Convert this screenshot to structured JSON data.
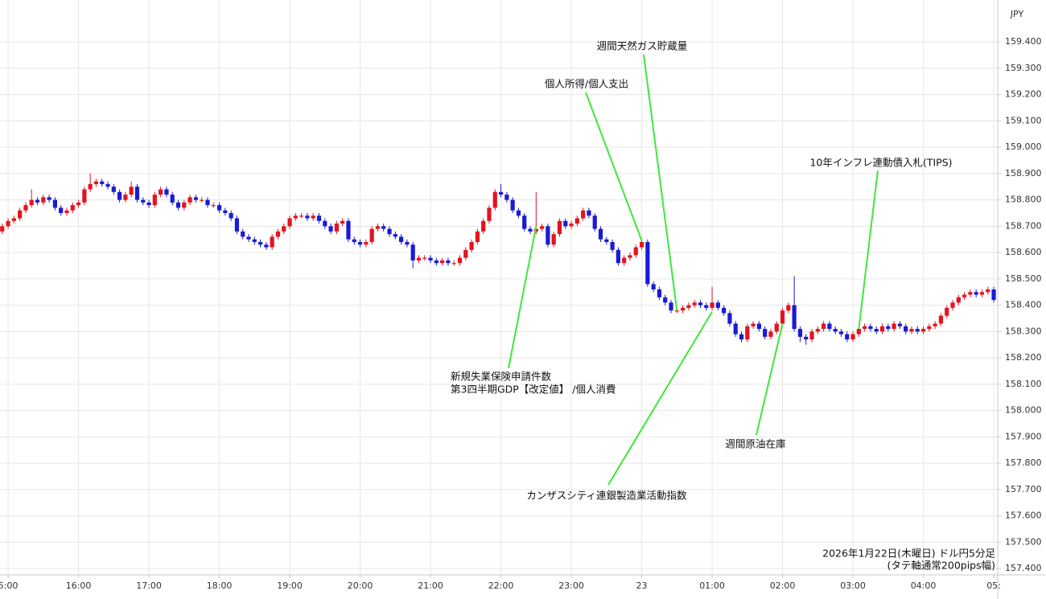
{
  "chart_data": {
    "type": "candlestick",
    "y_axis_label": "JPY",
    "up_color": "#e3141e",
    "down_color": "#1a1ad6",
    "grid": true,
    "xlim": [
      893.1,
      1743.4
    ],
    "ylim": [
      157.376,
      159.559
    ],
    "xticks": [
      {
        "value": 900,
        "label": "5:00"
      },
      {
        "value": 960,
        "label": "16:00"
      },
      {
        "value": 1020,
        "label": "17:00"
      },
      {
        "value": 1080,
        "label": "18:00"
      },
      {
        "value": 1140,
        "label": "19:00"
      },
      {
        "value": 1200,
        "label": "20:00"
      },
      {
        "value": 1260,
        "label": "21:00"
      },
      {
        "value": 1320,
        "label": "22:00"
      },
      {
        "value": 1380,
        "label": "23:00"
      },
      {
        "value": 1440,
        "label": "23"
      },
      {
        "value": 1500,
        "label": "01:00"
      },
      {
        "value": 1560,
        "label": "02:00"
      },
      {
        "value": 1620,
        "label": "03:00"
      },
      {
        "value": 1680,
        "label": "04:00"
      },
      {
        "value": 1740,
        "label": "05:"
      }
    ],
    "yticks": [
      {
        "value": 159.4,
        "label": "159.400"
      },
      {
        "value": 159.3,
        "label": "159.300"
      },
      {
        "value": 159.2,
        "label": "159.200"
      },
      {
        "value": 159.1,
        "label": "159.100"
      },
      {
        "value": 159.0,
        "label": "159.000"
      },
      {
        "value": 158.9,
        "label": "158.900"
      },
      {
        "value": 158.8,
        "label": "158.800"
      },
      {
        "value": 158.7,
        "label": "158.700"
      },
      {
        "value": 158.6,
        "label": "158.600"
      },
      {
        "value": 158.5,
        "label": "158.500"
      },
      {
        "value": 158.4,
        "label": "158.400"
      },
      {
        "value": 158.3,
        "label": "158.300"
      },
      {
        "value": 158.2,
        "label": "158.200"
      },
      {
        "value": 158.1,
        "label": "158.100"
      },
      {
        "value": 158.0,
        "label": "158.000"
      },
      {
        "value": 157.9,
        "label": "157.900"
      },
      {
        "value": 157.8,
        "label": "157.800"
      },
      {
        "value": 157.7,
        "label": "157.700"
      },
      {
        "value": 157.6,
        "label": "157.600"
      },
      {
        "value": 157.5,
        "label": "157.500"
      },
      {
        "value": 157.4,
        "label": "157.400"
      }
    ],
    "x": [
      895,
      900,
      905,
      910,
      915,
      920,
      925,
      930,
      935,
      940,
      945,
      950,
      955,
      960,
      965,
      970,
      975,
      980,
      985,
      990,
      995,
      1000,
      1005,
      1010,
      1015,
      1020,
      1025,
      1030,
      1035,
      1040,
      1045,
      1050,
      1055,
      1060,
      1065,
      1070,
      1075,
      1080,
      1085,
      1090,
      1095,
      1100,
      1105,
      1110,
      1115,
      1120,
      1125,
      1130,
      1135,
      1140,
      1145,
      1150,
      1155,
      1160,
      1165,
      1170,
      1175,
      1180,
      1185,
      1190,
      1195,
      1200,
      1205,
      1210,
      1215,
      1220,
      1225,
      1230,
      1235,
      1240,
      1245,
      1250,
      1255,
      1260,
      1265,
      1270,
      1275,
      1280,
      1285,
      1290,
      1295,
      1300,
      1305,
      1310,
      1315,
      1320,
      1325,
      1330,
      1335,
      1340,
      1345,
      1350,
      1355,
      1360,
      1365,
      1370,
      1375,
      1380,
      1385,
      1390,
      1395,
      1400,
      1405,
      1410,
      1415,
      1420,
      1425,
      1430,
      1435,
      1440,
      1445,
      1450,
      1455,
      1460,
      1465,
      1470,
      1475,
      1480,
      1485,
      1490,
      1495,
      1500,
      1505,
      1510,
      1515,
      1520,
      1525,
      1530,
      1535,
      1540,
      1545,
      1550,
      1555,
      1560,
      1565,
      1570,
      1575,
      1580,
      1585,
      1590,
      1595,
      1600,
      1605,
      1610,
      1615,
      1620,
      1625,
      1630,
      1635,
      1640,
      1645,
      1650,
      1655,
      1660,
      1665,
      1670,
      1675,
      1680,
      1685,
      1690,
      1695,
      1700,
      1705,
      1710,
      1715,
      1720,
      1725,
      1730,
      1735,
      1740
    ],
    "open": [
      158.68,
      158.7,
      158.72,
      158.73,
      158.76,
      158.78,
      158.8,
      158.79,
      158.81,
      158.8,
      158.77,
      158.75,
      158.76,
      158.78,
      158.79,
      158.84,
      158.86,
      158.87,
      158.86,
      158.85,
      158.83,
      158.8,
      158.82,
      158.85,
      158.8,
      158.79,
      158.78,
      158.82,
      158.84,
      158.82,
      158.79,
      158.77,
      158.79,
      158.81,
      158.8,
      158.8,
      158.78,
      158.78,
      158.76,
      158.75,
      158.73,
      158.68,
      158.66,
      158.65,
      158.64,
      158.63,
      158.62,
      158.66,
      158.68,
      158.7,
      158.73,
      158.74,
      158.74,
      158.73,
      158.74,
      158.72,
      158.7,
      158.68,
      158.71,
      158.72,
      158.65,
      158.64,
      158.63,
      158.64,
      158.69,
      158.7,
      158.69,
      158.67,
      158.66,
      158.64,
      158.63,
      158.57,
      158.58,
      158.58,
      158.57,
      158.56,
      158.57,
      158.56,
      158.56,
      158.58,
      158.61,
      158.64,
      158.68,
      158.72,
      158.77,
      158.83,
      158.82,
      158.8,
      158.76,
      158.74,
      158.69,
      158.68,
      158.69,
      158.7,
      158.63,
      158.67,
      158.72,
      158.7,
      158.71,
      158.73,
      158.76,
      158.74,
      158.69,
      158.65,
      158.64,
      158.61,
      158.56,
      158.58,
      158.59,
      158.62,
      158.64,
      158.48,
      158.46,
      158.43,
      158.41,
      158.38,
      158.38,
      158.39,
      158.4,
      158.41,
      158.4,
      158.39,
      158.41,
      158.39,
      158.37,
      158.33,
      158.29,
      158.27,
      158.32,
      158.33,
      158.31,
      158.28,
      158.3,
      158.33,
      158.38,
      158.4,
      158.31,
      158.28,
      158.27,
      158.3,
      158.31,
      158.33,
      158.31,
      158.3,
      158.29,
      158.27,
      158.29,
      158.31,
      158.32,
      158.31,
      158.3,
      158.32,
      158.31,
      158.33,
      158.32,
      158.3,
      158.31,
      158.3,
      158.31,
      158.32,
      158.33,
      158.36,
      158.39,
      158.41,
      158.43,
      158.44,
      158.45,
      158.44,
      158.45,
      158.46
    ],
    "high": [
      158.71,
      158.73,
      158.74,
      158.77,
      158.79,
      158.84,
      158.81,
      158.82,
      158.82,
      158.81,
      158.78,
      158.77,
      158.79,
      158.8,
      158.85,
      158.9,
      158.88,
      158.88,
      158.87,
      158.86,
      158.84,
      158.83,
      158.87,
      158.86,
      158.81,
      158.8,
      158.83,
      158.85,
      158.85,
      158.83,
      158.8,
      158.8,
      158.82,
      158.82,
      158.81,
      158.81,
      158.79,
      158.79,
      158.77,
      158.76,
      158.74,
      158.69,
      158.67,
      158.66,
      158.65,
      158.64,
      158.67,
      158.69,
      158.71,
      158.74,
      158.75,
      158.75,
      158.75,
      158.75,
      158.75,
      158.73,
      158.71,
      158.72,
      158.73,
      158.73,
      158.66,
      158.65,
      158.65,
      158.7,
      158.71,
      158.71,
      158.7,
      158.68,
      158.67,
      158.65,
      158.64,
      158.59,
      158.59,
      158.59,
      158.58,
      158.58,
      158.58,
      158.57,
      158.59,
      158.62,
      158.65,
      158.69,
      158.73,
      158.78,
      158.84,
      158.86,
      158.83,
      158.81,
      158.77,
      158.75,
      158.7,
      158.83,
      158.71,
      158.71,
      158.68,
      158.73,
      158.73,
      158.72,
      158.74,
      158.77,
      158.77,
      158.75,
      158.7,
      158.66,
      158.65,
      158.62,
      158.59,
      158.6,
      158.63,
      158.65,
      158.65,
      158.49,
      158.47,
      158.44,
      158.42,
      158.39,
      158.4,
      158.41,
      158.42,
      158.42,
      158.41,
      158.47,
      158.42,
      158.4,
      158.38,
      158.34,
      158.3,
      158.33,
      158.34,
      158.34,
      158.32,
      158.31,
      158.34,
      158.39,
      158.41,
      158.51,
      158.32,
      158.29,
      158.31,
      158.32,
      158.34,
      158.34,
      158.32,
      158.31,
      158.3,
      158.3,
      158.32,
      158.33,
      158.33,
      158.32,
      158.33,
      158.33,
      158.34,
      158.34,
      158.33,
      158.32,
      158.32,
      158.32,
      158.33,
      158.34,
      158.37,
      158.4,
      158.42,
      158.44,
      158.45,
      158.46,
      158.46,
      158.46,
      158.47,
      158.47
    ],
    "low": [
      158.67,
      158.69,
      158.71,
      158.72,
      158.75,
      158.77,
      158.78,
      158.78,
      158.79,
      158.76,
      158.74,
      158.74,
      158.75,
      158.77,
      158.78,
      158.83,
      158.85,
      158.85,
      158.84,
      158.82,
      158.79,
      158.79,
      158.81,
      158.79,
      158.78,
      158.77,
      158.77,
      158.81,
      158.81,
      158.78,
      158.76,
      158.76,
      158.78,
      158.79,
      158.79,
      158.77,
      158.77,
      158.75,
      158.74,
      158.72,
      158.67,
      158.65,
      158.64,
      158.63,
      158.62,
      158.61,
      158.61,
      158.65,
      158.67,
      158.69,
      158.72,
      158.73,
      158.72,
      158.72,
      158.71,
      158.69,
      158.67,
      158.67,
      158.7,
      158.64,
      158.63,
      158.62,
      158.62,
      158.63,
      158.68,
      158.68,
      158.66,
      158.65,
      158.63,
      158.62,
      158.54,
      158.56,
      158.57,
      158.56,
      158.55,
      158.55,
      158.55,
      158.55,
      158.55,
      158.57,
      158.6,
      158.63,
      158.67,
      158.71,
      158.76,
      158.81,
      158.79,
      158.75,
      158.73,
      158.68,
      158.67,
      158.67,
      158.68,
      158.62,
      158.62,
      158.66,
      158.69,
      158.69,
      158.7,
      158.72,
      158.73,
      158.68,
      158.64,
      158.63,
      158.6,
      158.55,
      158.55,
      158.57,
      158.58,
      158.61,
      158.47,
      158.45,
      158.42,
      158.4,
      158.37,
      158.37,
      158.37,
      158.38,
      158.39,
      158.39,
      158.38,
      158.38,
      158.38,
      158.36,
      158.32,
      158.28,
      158.26,
      158.26,
      158.31,
      158.3,
      158.27,
      158.27,
      158.29,
      158.32,
      158.37,
      158.3,
      158.26,
      158.25,
      158.26,
      158.29,
      158.3,
      158.3,
      158.29,
      158.28,
      158.26,
      158.26,
      158.28,
      158.3,
      158.3,
      158.29,
      158.29,
      158.3,
      158.3,
      158.31,
      158.29,
      158.29,
      158.29,
      158.29,
      158.3,
      158.31,
      158.32,
      158.35,
      158.38,
      158.4,
      158.42,
      158.43,
      158.43,
      158.43,
      158.44,
      158.41
    ],
    "close": [
      158.7,
      158.72,
      158.73,
      158.76,
      158.78,
      158.8,
      158.79,
      158.81,
      158.8,
      158.77,
      158.75,
      158.76,
      158.78,
      158.79,
      158.84,
      158.86,
      158.87,
      158.86,
      158.85,
      158.83,
      158.8,
      158.82,
      158.85,
      158.8,
      158.79,
      158.78,
      158.82,
      158.84,
      158.82,
      158.79,
      158.77,
      158.79,
      158.81,
      158.8,
      158.8,
      158.78,
      158.78,
      158.76,
      158.75,
      158.73,
      158.68,
      158.66,
      158.65,
      158.64,
      158.63,
      158.62,
      158.66,
      158.68,
      158.7,
      158.73,
      158.74,
      158.74,
      158.73,
      158.74,
      158.72,
      158.7,
      158.68,
      158.71,
      158.72,
      158.65,
      158.64,
      158.63,
      158.64,
      158.69,
      158.7,
      158.69,
      158.67,
      158.66,
      158.64,
      158.63,
      158.57,
      158.58,
      158.58,
      158.57,
      158.56,
      158.57,
      158.56,
      158.56,
      158.58,
      158.61,
      158.64,
      158.68,
      158.72,
      158.77,
      158.83,
      158.82,
      158.8,
      158.76,
      158.74,
      158.69,
      158.68,
      158.69,
      158.7,
      158.63,
      158.67,
      158.72,
      158.7,
      158.71,
      158.73,
      158.76,
      158.74,
      158.69,
      158.65,
      158.64,
      158.61,
      158.56,
      158.58,
      158.59,
      158.62,
      158.64,
      158.48,
      158.46,
      158.43,
      158.41,
      158.38,
      158.38,
      158.39,
      158.4,
      158.41,
      158.4,
      158.39,
      158.41,
      158.39,
      158.37,
      158.33,
      158.29,
      158.27,
      158.32,
      158.33,
      158.31,
      158.28,
      158.3,
      158.33,
      158.38,
      158.4,
      158.31,
      158.28,
      158.27,
      158.3,
      158.31,
      158.33,
      158.31,
      158.3,
      158.29,
      158.27,
      158.29,
      158.31,
      158.32,
      158.31,
      158.3,
      158.32,
      158.31,
      158.33,
      158.32,
      158.3,
      158.31,
      158.3,
      158.31,
      158.32,
      158.33,
      158.36,
      158.39,
      158.41,
      158.43,
      158.44,
      158.45,
      158.44,
      158.45,
      158.46,
      158.42
    ],
    "annotations": [
      {
        "lines": [
          "週間天然ガス貯蔵量"
        ],
        "x": 1470,
        "y": 158.38
      },
      {
        "lines": [
          "個人所得/個人支出"
        ],
        "x": 1440,
        "y": 158.645
      },
      {
        "lines": [
          "10年インフレ連動債入札(TIPS)"
        ],
        "x": 1625,
        "y": 158.31
      },
      {
        "lines": [
          "新規失業保険申請件数",
          "第3四半期GDP【改定値】 /個人消費"
        ],
        "x": 1350,
        "y": 158.7
      },
      {
        "lines": [
          "週間原油在庫"
        ],
        "x": 1560,
        "y": 158.33
      },
      {
        "lines": [
          "カンザスシティ連銀製造業活動指数"
        ],
        "x": 1500,
        "y": 158.375
      }
    ],
    "footer": [
      "2026年1月22日(木曜日) ドル円5分足",
      "(タテ軸通常200pips幅)"
    ]
  }
}
